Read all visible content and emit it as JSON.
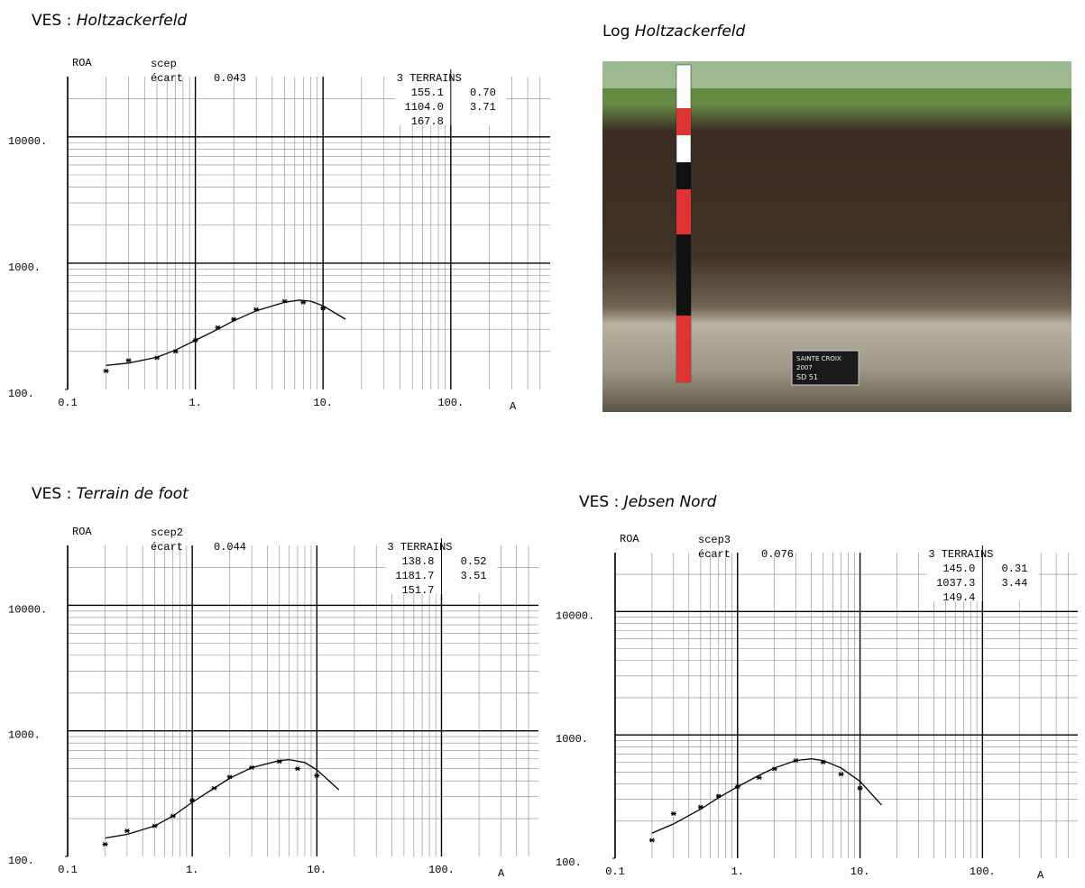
{
  "chart_data": [
    {
      "type": "scatter",
      "title_prefix": "VES :",
      "title": "Holtzackerfeld",
      "y_label": "ROA",
      "x_label": "A",
      "model": "scep",
      "fit_label": "écart",
      "fit": "0.043",
      "layers_title": "3 TERRAINS",
      "layers": [
        [
          "155.1",
          "0.70"
        ],
        [
          "1104.0",
          "3.71"
        ],
        [
          "167.8"
        ]
      ],
      "log_x": true,
      "log_y": true,
      "grid": true,
      "color": "#000000",
      "xlim": [
        0.1,
        600
      ],
      "ylim": [
        100,
        30000
      ],
      "xticks": [
        0.1,
        {
          "value": 1,
          "label": "1."
        },
        {
          "value": 10,
          "label": "10."
        },
        {
          "value": 100,
          "label": "100."
        }
      ],
      "yticks": [
        {
          "value": 100,
          "label": "100."
        },
        {
          "value": 1000,
          "label": "1000."
        },
        {
          "value": 10000,
          "label": "10000."
        }
      ],
      "points_x": [
        0.2,
        0.3,
        0.5,
        0.7,
        1,
        1.5,
        2,
        3,
        5,
        7,
        10
      ],
      "points_y": [
        140,
        170,
        178,
        200,
        245,
        310,
        360,
        430,
        500,
        490,
        440
      ],
      "curve_x": [
        0.2,
        0.3,
        0.5,
        0.7,
        1,
        1.5,
        2,
        3,
        5,
        6.5,
        8,
        10,
        15
      ],
      "curve_y": [
        155,
        162,
        180,
        205,
        245,
        300,
        350,
        420,
        490,
        510,
        500,
        460,
        360
      ]
    },
    {
      "type": "scatter",
      "title_prefix": "VES :",
      "title": "Terrain de foot",
      "y_label": "ROA",
      "x_label": "A",
      "model": "scep2",
      "fit_label": "écart",
      "fit": "0.044",
      "layers_title": "3 TERRAINS",
      "layers": [
        [
          "138.8",
          "0.52"
        ],
        [
          "1181.7",
          "3.51"
        ],
        [
          "151.7"
        ]
      ],
      "log_x": true,
      "log_y": true,
      "grid": true,
      "color": "#000000",
      "xlim": [
        0.1,
        600
      ],
      "ylim": [
        100,
        30000
      ],
      "xticks": [
        0.1,
        {
          "value": 1,
          "label": "1."
        },
        {
          "value": 10,
          "label": "10."
        },
        {
          "value": 100,
          "label": "100."
        }
      ],
      "yticks": [
        {
          "value": 100,
          "label": "100."
        },
        {
          "value": 1000,
          "label": "1000."
        },
        {
          "value": 10000,
          "label": "10000."
        }
      ],
      "points_x": [
        0.2,
        0.3,
        0.5,
        0.7,
        1,
        1.5,
        2,
        3,
        5,
        7,
        10
      ],
      "points_y": [
        125,
        160,
        175,
        210,
        280,
        350,
        430,
        510,
        570,
        500,
        440
      ],
      "curve_x": [
        0.2,
        0.3,
        0.5,
        0.7,
        1,
        1.5,
        2,
        3,
        5,
        6,
        8,
        10,
        15
      ],
      "curve_y": [
        140,
        150,
        175,
        210,
        270,
        350,
        420,
        510,
        580,
        590,
        560,
        490,
        340
      ]
    },
    {
      "type": "scatter",
      "title_prefix": "VES :",
      "title": "Jebsen Nord",
      "y_label": "ROA",
      "x_label": "A",
      "model": "scep3",
      "fit_label": "écart",
      "fit": "0.076",
      "layers_title": "3 TERRAINS",
      "layers": [
        [
          "145.0",
          "0.31"
        ],
        [
          "1037.3",
          "3.44"
        ],
        [
          "149.4"
        ]
      ],
      "log_x": true,
      "log_y": true,
      "grid": true,
      "color": "#000000",
      "xlim": [
        0.1,
        600
      ],
      "ylim": [
        100,
        30000
      ],
      "xticks": [
        0.1,
        {
          "value": 1,
          "label": "1."
        },
        {
          "value": 10,
          "label": "10."
        },
        {
          "value": 100,
          "label": "100."
        }
      ],
      "yticks": [
        {
          "value": 100,
          "label": "100."
        },
        {
          "value": 1000,
          "label": "1000."
        },
        {
          "value": 10000,
          "label": "10000."
        }
      ],
      "points_x": [
        0.2,
        0.3,
        0.5,
        0.7,
        1,
        1.5,
        2,
        3,
        5,
        7,
        10
      ],
      "points_y": [
        140,
        230,
        260,
        320,
        380,
        450,
        530,
        620,
        600,
        480,
        370
      ],
      "curve_x": [
        0.2,
        0.3,
        0.5,
        0.7,
        1,
        1.5,
        2,
        3,
        4,
        5,
        7,
        10,
        15
      ],
      "curve_y": [
        160,
        190,
        250,
        310,
        380,
        470,
        540,
        620,
        640,
        620,
        540,
        420,
        270
      ]
    }
  ],
  "photo": {
    "title_prefix": "Log",
    "title": "Holtzackerfeld",
    "sign": [
      "SAINTE CROIX",
      "2007",
      "SD 51"
    ]
  }
}
